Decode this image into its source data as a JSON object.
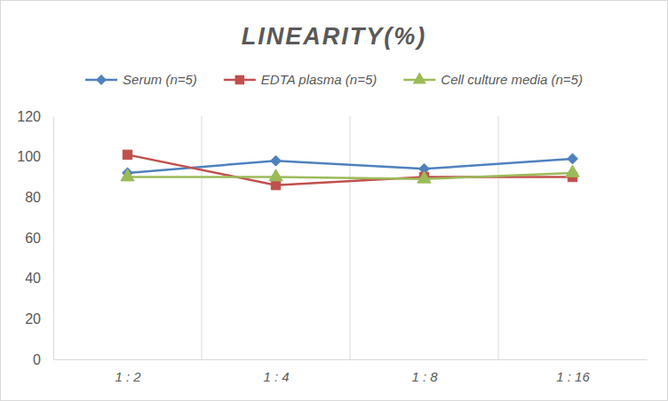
{
  "chart_data": {
    "type": "line",
    "title": "LINEARITY(%)",
    "categories": [
      "1 : 2",
      "1 : 4",
      "1 : 8",
      "1 : 16"
    ],
    "series": [
      {
        "name": "Serum (n=5)",
        "color": "#4f81bd",
        "marker": "diamond",
        "values": [
          92,
          98,
          94,
          99
        ]
      },
      {
        "name": "EDTA plasma (n=5)",
        "color": "#c0504d",
        "marker": "square",
        "values": [
          101,
          86,
          90,
          90
        ]
      },
      {
        "name": "Cell culture media (n=5)",
        "color": "#9bbb59",
        "marker": "triangle",
        "values": [
          90,
          90,
          89,
          92
        ]
      }
    ],
    "ylim": [
      0,
      120
    ],
    "yticks": [
      0,
      20,
      40,
      60,
      80,
      100,
      120
    ],
    "grid": true,
    "legend": "top"
  }
}
